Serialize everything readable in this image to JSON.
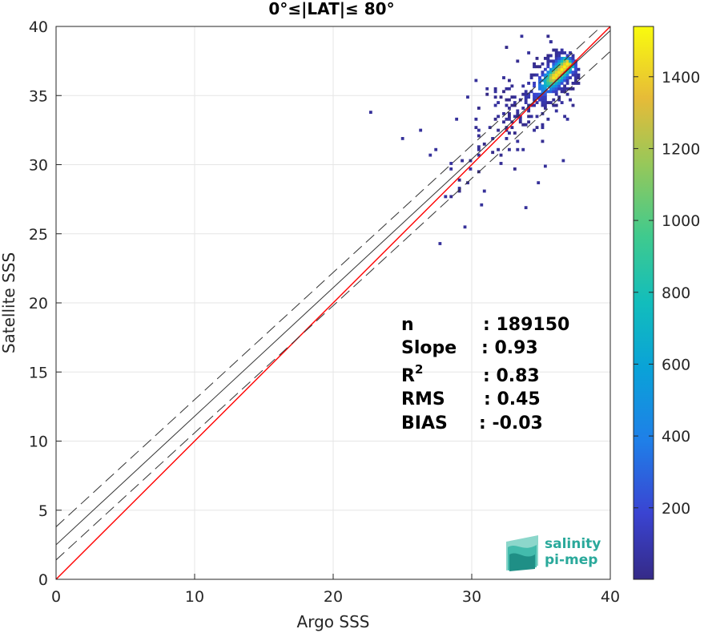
{
  "chart_data": {
    "type": "heatmap",
    "title": "0°≤|LAT|≤ 80°",
    "xlabel": "Argo SSS",
    "ylabel": "Satellite SSS",
    "xlim": [
      0,
      40
    ],
    "ylim": [
      0,
      40
    ],
    "xticks": [
      "0",
      "10",
      "20",
      "30",
      "40"
    ],
    "yticks": [
      "0",
      "5",
      "10",
      "15",
      "20",
      "25",
      "30",
      "35",
      "40"
    ],
    "grid": true,
    "colorbar": {
      "range": [
        1,
        1540
      ],
      "ticks": [
        "200",
        "400",
        "600",
        "800",
        "1000",
        "1200",
        "1400"
      ],
      "tick_values": [
        200,
        400,
        600,
        800,
        1000,
        1200,
        1400
      ],
      "colormap": "parula"
    },
    "lines": [
      {
        "name": "one-to-one",
        "color": "#ff0000",
        "x": [
          0,
          40
        ],
        "y": [
          0,
          40
        ]
      },
      {
        "name": "fit",
        "color": "#333333",
        "x": [
          0,
          40
        ],
        "y": [
          2.5,
          39.7
        ]
      },
      {
        "name": "fit-upper",
        "color": "#333333",
        "dashed": true,
        "x": [
          0,
          40
        ],
        "y": [
          3.8,
          40.6
        ]
      },
      {
        "name": "fit-lower",
        "color": "#333333",
        "dashed": true,
        "x": [
          0,
          40
        ],
        "y": [
          1.4,
          38.2
        ]
      }
    ],
    "density_peak": {
      "x": 35.8,
      "y": 36.2,
      "max_count": 1540
    }
  },
  "stats": [
    {
      "label": "n",
      "value": ": 189150"
    },
    {
      "label": "Slope",
      "value": ": 0.93"
    },
    {
      "label": "R",
      "sup": "2",
      "value": ": 0.83"
    },
    {
      "label": "RMS",
      "value": ": 0.45"
    },
    {
      "label": "BIAS",
      "value": ": -0.03"
    }
  ],
  "logo": {
    "line1": "salinity",
    "line2": "pi-mep"
  }
}
